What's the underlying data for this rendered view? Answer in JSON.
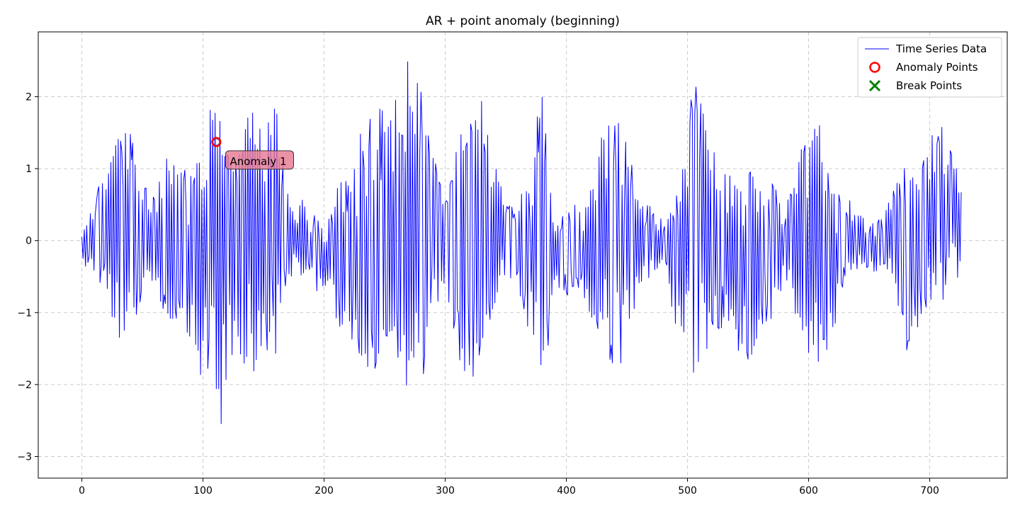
{
  "chart_data": {
    "type": "line",
    "title": "AR + point anomaly (beginning)",
    "xlabel": "",
    "ylabel": "",
    "xlim": [
      -36,
      764
    ],
    "ylim": [
      -3.3,
      2.9
    ],
    "xticks": [
      0,
      100,
      200,
      300,
      400,
      500,
      600,
      700
    ],
    "yticks": [
      -3,
      -2,
      -1,
      0,
      1,
      2
    ],
    "ytick_labels": [
      "−3",
      "−2",
      "−1",
      "0",
      "1",
      "2"
    ],
    "grid": true,
    "legend_position": "top-right",
    "series": [
      {
        "name": "Time Series Data",
        "color": "#0000ff",
        "n_points": 727,
        "x_start": 0,
        "envelope_x": [
          0,
          10,
          20,
          30,
          40,
          50,
          60,
          70,
          80,
          90,
          100,
          105,
          110,
          115,
          120,
          130,
          140,
          150,
          160,
          170,
          180,
          190,
          200,
          210,
          220,
          230,
          240,
          250,
          260,
          270,
          280,
          290,
          300,
          310,
          320,
          330,
          340,
          350,
          360,
          370,
          380,
          390,
          400,
          410,
          420,
          430,
          440,
          450,
          460,
          470,
          480,
          490,
          500,
          505,
          510,
          520,
          530,
          540,
          550,
          560,
          570,
          580,
          590,
          600,
          610,
          620,
          630,
          640,
          650,
          660,
          670,
          680,
          690,
          700,
          710,
          720,
          727
        ],
        "envelope_upper": [
          0.1,
          0.6,
          1.0,
          1.5,
          1.5,
          0.9,
          0.6,
          1.3,
          1.1,
          1.0,
          1.3,
          2.1,
          2.0,
          2.6,
          1.5,
          1.6,
          1.9,
          1.6,
          2.1,
          0.7,
          0.6,
          0.5,
          0.1,
          1.1,
          0.9,
          1.6,
          1.8,
          1.9,
          2.0,
          2.6,
          2.1,
          1.5,
          0.6,
          1.3,
          1.9,
          2.0,
          1.1,
          0.6,
          0.6,
          0.9,
          2.4,
          0.3,
          0.4,
          0.6,
          0.7,
          1.6,
          1.9,
          1.4,
          0.6,
          0.5,
          0.3,
          0.6,
          1.3,
          2.4,
          2.0,
          1.3,
          1.1,
          1.1,
          1.0,
          1.0,
          0.8,
          0.5,
          1.2,
          1.6,
          1.6,
          0.7,
          0.6,
          0.5,
          0.3,
          0.3,
          0.7,
          1.1,
          0.8,
          1.6,
          1.6,
          1.3,
          0.7
        ],
        "envelope_lower": [
          -0.3,
          -0.5,
          -0.8,
          -1.4,
          -1.3,
          -0.8,
          -0.6,
          -1.1,
          -1.2,
          -1.4,
          -2.2,
          -1.7,
          -2.5,
          -3.0,
          -1.8,
          -1.6,
          -1.9,
          -1.5,
          -1.6,
          -0.5,
          -0.5,
          -0.7,
          -0.7,
          -1.2,
          -1.3,
          -1.9,
          -2.0,
          -1.5,
          -1.8,
          -2.2,
          -2.1,
          -1.1,
          -0.6,
          -1.7,
          -2.0,
          -1.8,
          -0.9,
          -0.6,
          -0.6,
          -1.5,
          -2.3,
          -0.7,
          -0.8,
          -0.7,
          -1.1,
          -1.4,
          -1.9,
          -1.5,
          -0.6,
          -0.5,
          -0.3,
          -1.3,
          -1.5,
          -2.0,
          -1.7,
          -1.5,
          -1.2,
          -1.5,
          -2.0,
          -1.2,
          -1.1,
          -0.6,
          -1.1,
          -1.6,
          -1.7,
          -1.4,
          -0.5,
          -0.4,
          -0.5,
          -0.5,
          -0.6,
          -1.6,
          -1.2,
          -1.0,
          -1.0,
          -0.7,
          -0.3
        ]
      },
      {
        "name": "Anomaly Points",
        "color": "#ff0000",
        "marker": "circle",
        "points": [
          {
            "x": 111,
            "y": 1.37
          }
        ]
      },
      {
        "name": "Break Points",
        "color": "#008000",
        "marker": "x",
        "points": []
      }
    ],
    "annotations": [
      {
        "text": "Anomaly 1",
        "x": 121,
        "y": 1.1,
        "box_color": "#e87f98"
      }
    ]
  }
}
